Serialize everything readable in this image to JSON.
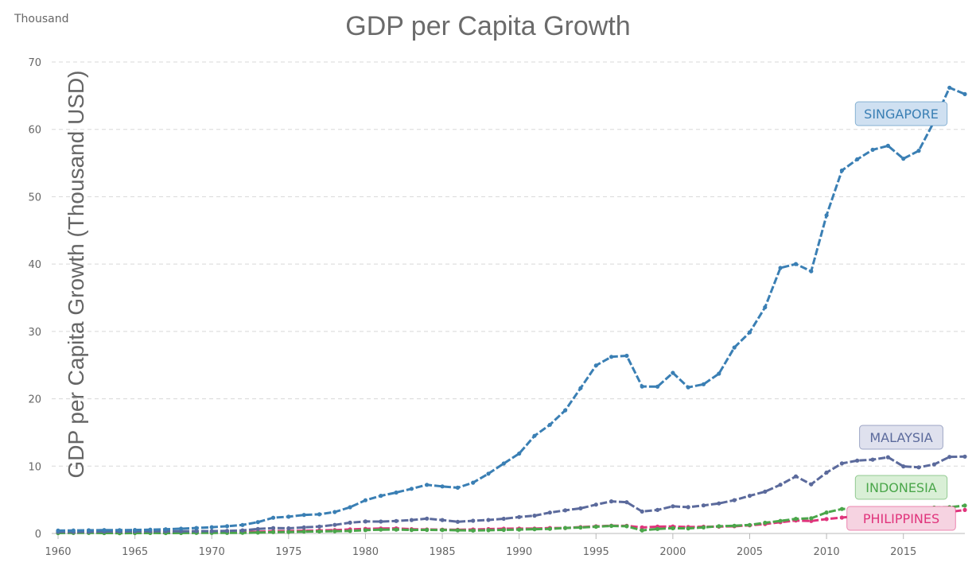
{
  "chart_data": {
    "type": "line",
    "title": "GDP per Capita Growth",
    "unit_label": "Thousand",
    "ylabel": "GDP per Capita Growth (Thousand USD)",
    "xlabel": "",
    "xlim": [
      1960,
      2019
    ],
    "ylim": [
      0,
      70
    ],
    "x_ticks": [
      1960,
      1965,
      1970,
      1975,
      1980,
      1985,
      1990,
      1995,
      2000,
      2005,
      2010,
      2015
    ],
    "y_ticks": [
      0,
      10,
      20,
      30,
      40,
      50,
      60,
      70
    ],
    "grid": "horizontal dashed",
    "x": [
      1960,
      1961,
      1962,
      1963,
      1964,
      1965,
      1966,
      1967,
      1968,
      1969,
      1970,
      1971,
      1972,
      1973,
      1974,
      1975,
      1976,
      1977,
      1978,
      1979,
      1980,
      1981,
      1982,
      1983,
      1984,
      1985,
      1986,
      1987,
      1988,
      1989,
      1990,
      1991,
      1992,
      1993,
      1994,
      1995,
      1996,
      1997,
      1998,
      1999,
      2000,
      2001,
      2002,
      2003,
      2004,
      2005,
      2006,
      2007,
      2008,
      2009,
      2010,
      2011,
      2012,
      2013,
      2014,
      2015,
      2016,
      2017,
      2018,
      2019
    ],
    "series": [
      {
        "name": "SINGAPORE",
        "color": "#3a7fb4",
        "label_bg": "#cfe0f1",
        "values": [
          0.43,
          0.45,
          0.47,
          0.51,
          0.49,
          0.52,
          0.57,
          0.63,
          0.71,
          0.81,
          0.93,
          1.07,
          1.26,
          1.69,
          2.34,
          2.49,
          2.75,
          2.85,
          3.19,
          3.9,
          4.93,
          5.6,
          6.08,
          6.63,
          7.23,
          6.99,
          6.8,
          7.54,
          8.88,
          10.39,
          11.86,
          14.5,
          16.14,
          18.29,
          21.58,
          24.94,
          26.23,
          26.38,
          21.83,
          21.8,
          23.85,
          21.7,
          22.16,
          23.73,
          27.61,
          29.87,
          33.58,
          39.43,
          40.01,
          38.93,
          47.24,
          53.89,
          55.55,
          56.97,
          57.56,
          55.65,
          56.83,
          61.18,
          66.19,
          65.23
        ]
      },
      {
        "name": "MALAYSIA",
        "color": "#5b6a9c",
        "label_bg": "#dfe1ee",
        "values": [
          0.24,
          0.24,
          0.25,
          0.28,
          0.29,
          0.31,
          0.33,
          0.32,
          0.32,
          0.35,
          0.36,
          0.39,
          0.46,
          0.67,
          0.8,
          0.77,
          0.91,
          1.03,
          1.27,
          1.61,
          1.78,
          1.77,
          1.85,
          1.99,
          2.21,
          2.0,
          1.73,
          1.89,
          2.01,
          2.18,
          2.44,
          2.65,
          3.11,
          3.43,
          3.73,
          4.29,
          4.77,
          4.64,
          3.26,
          3.49,
          4.04,
          3.91,
          4.17,
          4.46,
          4.95,
          5.59,
          6.21,
          7.24,
          8.47,
          7.29,
          9.04,
          10.4,
          10.82,
          10.97,
          11.32,
          9.96,
          9.82,
          10.26,
          11.37,
          11.41
        ]
      },
      {
        "name": "INDONESIA",
        "color": "#4aa64a",
        "label_bg": "#d9efd6",
        "values": [
          0.06,
          0.08,
          0.08,
          0.06,
          0.05,
          0.06,
          0.07,
          0.06,
          0.07,
          0.08,
          0.08,
          0.08,
          0.09,
          0.13,
          0.2,
          0.23,
          0.27,
          0.31,
          0.34,
          0.38,
          0.5,
          0.57,
          0.58,
          0.52,
          0.53,
          0.52,
          0.47,
          0.44,
          0.48,
          0.53,
          0.58,
          0.64,
          0.69,
          0.81,
          0.88,
          1.0,
          1.12,
          1.07,
          0.46,
          0.67,
          0.78,
          0.75,
          0.9,
          1.07,
          1.15,
          1.26,
          1.59,
          1.86,
          2.17,
          2.26,
          3.12,
          3.64,
          3.69,
          3.62,
          3.49,
          3.33,
          3.56,
          3.84,
          3.89,
          4.14
        ]
      },
      {
        "name": "PHILIPPINES",
        "color": "#e0347c",
        "label_bg": "#f6d3e1",
        "values": [
          0.25,
          0.1,
          0.12,
          0.14,
          0.14,
          0.16,
          0.17,
          0.18,
          0.19,
          0.19,
          0.18,
          0.2,
          0.21,
          0.26,
          0.34,
          0.37,
          0.41,
          0.45,
          0.51,
          0.6,
          0.69,
          0.74,
          0.75,
          0.64,
          0.59,
          0.57,
          0.54,
          0.59,
          0.65,
          0.71,
          0.72,
          0.72,
          0.81,
          0.82,
          0.94,
          1.06,
          1.16,
          1.13,
          0.9,
          1.02,
          1.04,
          0.96,
          1.0,
          1.01,
          1.08,
          1.2,
          1.4,
          1.68,
          1.92,
          1.85,
          2.14,
          2.36,
          2.59,
          2.76,
          2.84,
          2.87,
          2.94,
          2.98,
          3.19,
          3.49
        ]
      }
    ]
  }
}
